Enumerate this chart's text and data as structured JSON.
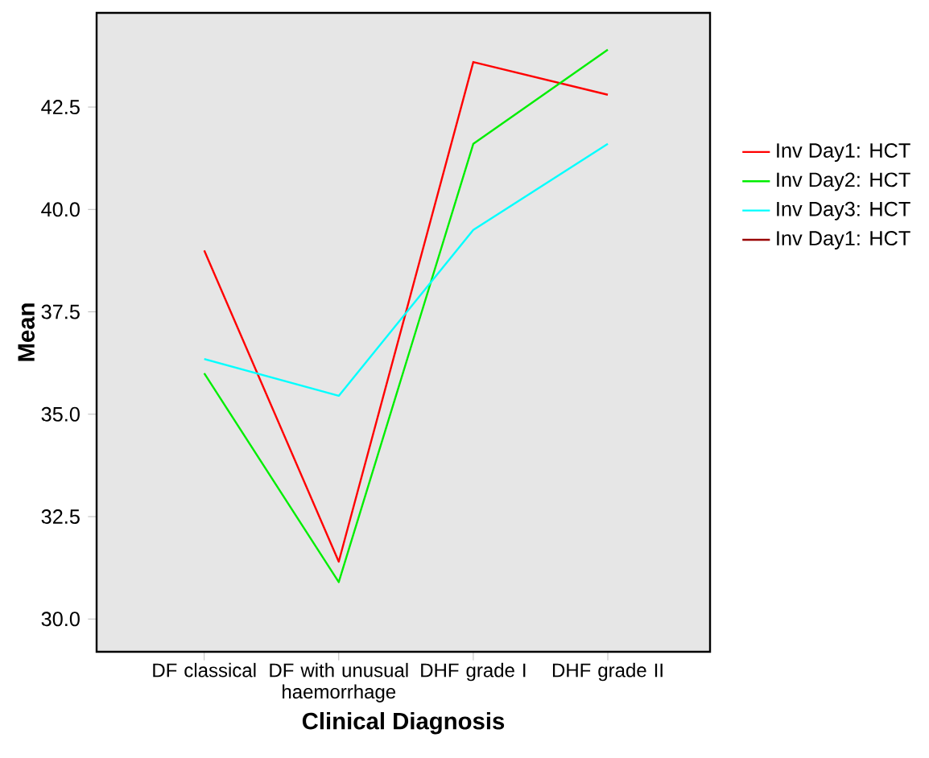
{
  "chart_data": {
    "type": "line",
    "xlabel": "Clinical Diagnosis",
    "ylabel": "Mean",
    "categories": [
      "DF classical",
      "DF with unusual haemorrhage",
      "DHF grade I",
      "DHF grade II"
    ],
    "series": [
      {
        "name": "Inv Day1: HCT",
        "color": "#ff0000",
        "values": [
          39.0,
          31.4,
          43.6,
          42.8
        ]
      },
      {
        "name": "Inv Day2: HCT",
        "color": "#00ee00",
        "values": [
          36.0,
          30.9,
          41.6,
          43.9
        ]
      },
      {
        "name": "Inv Day3: HCT",
        "color": "#00ffff",
        "values": [
          36.35,
          35.45,
          39.5,
          41.6
        ]
      },
      {
        "name": "Inv Day1: HCT",
        "color": "#990000",
        "values": [
          null,
          null,
          null,
          null
        ]
      }
    ],
    "ylim": [
      29.2,
      44.8
    ],
    "yticks": [
      {
        "value": 30,
        "label": "30.0"
      },
      {
        "value": 32.5,
        "label": "32.5"
      },
      {
        "value": 35,
        "label": "35.0"
      },
      {
        "value": 37.5,
        "label": "37.5"
      },
      {
        "value": 40,
        "label": "40.0"
      },
      {
        "value": 42.5,
        "label": "42.5"
      }
    ],
    "legend": "right",
    "grid": false,
    "marker": "none",
    "line_style": "solid"
  }
}
